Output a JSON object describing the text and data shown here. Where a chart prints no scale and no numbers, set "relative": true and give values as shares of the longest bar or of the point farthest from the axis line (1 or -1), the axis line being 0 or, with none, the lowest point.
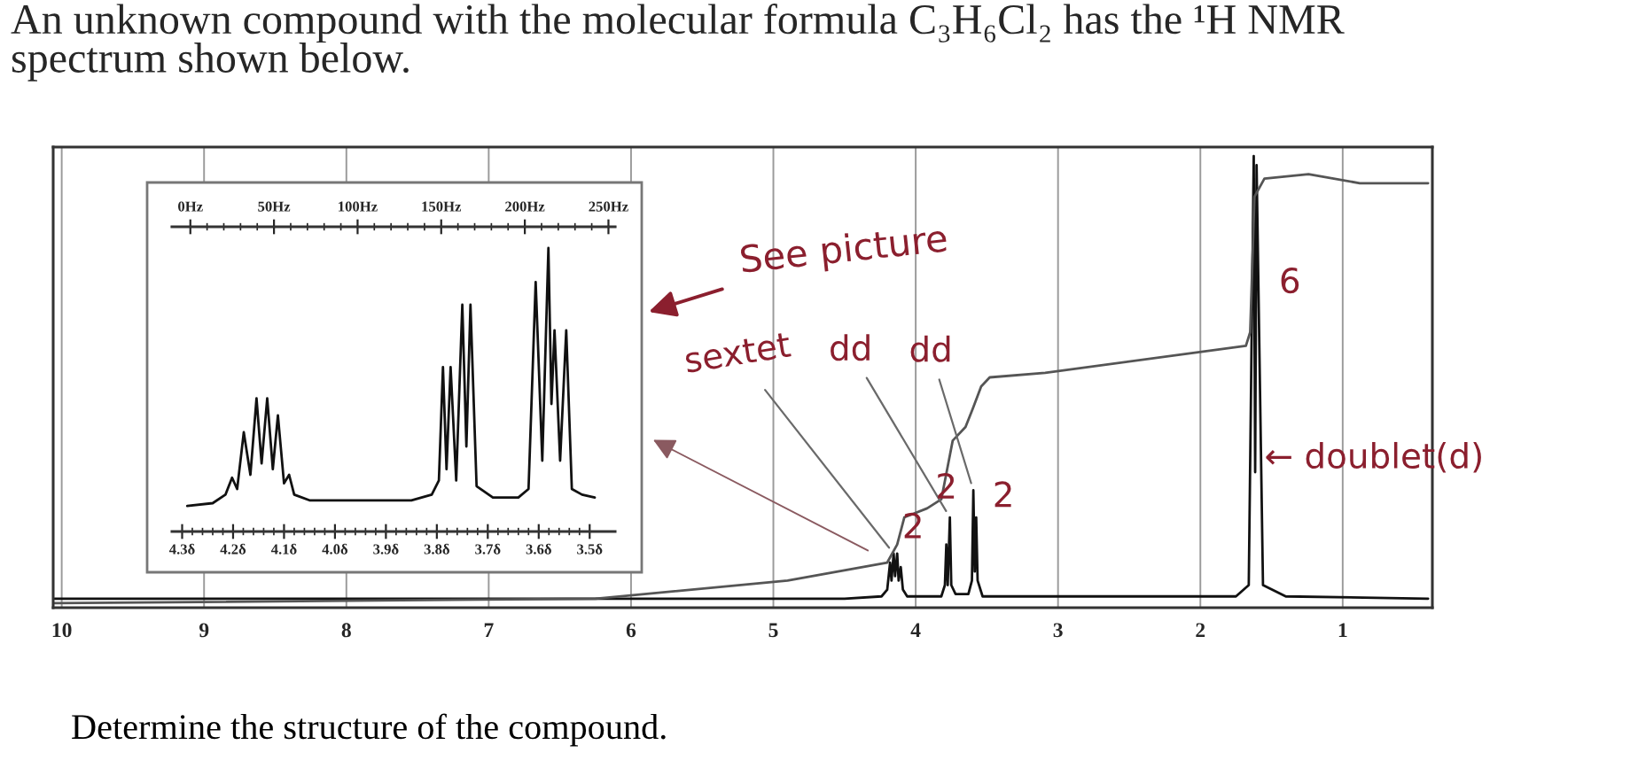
{
  "chart_data": [
    {
      "type": "line",
      "title": "An unknown compound with the molecular formula C₃H₆Cl₂ has the ¹H NMR\nspectrum shown below.",
      "relative": true,
      "xlim": [
        10.06,
        0.37
      ],
      "xticks": [
        10,
        9,
        8,
        7,
        6,
        5,
        4,
        3,
        2,
        1
      ],
      "grid": "x",
      "tick_labels": "x",
      "series": [
        {
          "color": "#111111",
          "x": [
            10.05,
            4.5,
            4.24,
            4.2,
            4.18,
            4.17,
            4.155,
            4.145,
            4.13,
            4.12,
            4.105,
            4.09,
            4.06,
            3.82,
            3.795,
            3.785,
            3.775,
            3.76,
            3.75,
            3.72,
            3.63,
            3.605,
            3.595,
            3.585,
            3.575,
            3.565,
            3.53,
            1.75,
            1.66,
            1.625,
            1.615,
            1.605,
            1.56,
            1.4,
            0.4
          ],
          "values": [
            0.02,
            0.02,
            0.025,
            0.04,
            0.1,
            0.06,
            0.12,
            0.07,
            0.12,
            0.06,
            0.09,
            0.04,
            0.025,
            0.025,
            0.05,
            0.14,
            0.05,
            0.2,
            0.05,
            0.03,
            0.03,
            0.06,
            0.26,
            0.08,
            0.2,
            0.06,
            0.025,
            0.025,
            0.05,
            1.0,
            0.3,
            0.98,
            0.05,
            0.025,
            0.02
          ]
        },
        {
          "color": "#555555",
          "x": [
            10.05,
            6.25,
            4.9,
            4.2,
            4.13,
            4.08,
            3.92,
            3.82,
            3.74,
            3.65,
            3.6,
            3.54,
            3.48,
            3.09,
            1.68,
            1.65,
            1.62,
            1.55,
            1.24,
            0.88,
            0.4
          ],
          "values": [
            0.01,
            0.02,
            0.06,
            0.1,
            0.14,
            0.2,
            0.22,
            0.24,
            0.37,
            0.4,
            0.44,
            0.49,
            0.51,
            0.52,
            0.58,
            0.61,
            0.91,
            0.95,
            0.96,
            0.94,
            0.94
          ]
        }
      ],
      "annotations": [
        "See picture",
        {
          "text": "sextet",
          "x": 4.155,
          "y": 0.12
        },
        {
          "text": "dd",
          "x": 3.76,
          "y": 0.2
        },
        {
          "text": "dd",
          "x": 3.595,
          "y": 0.26
        },
        {
          "text": "2",
          "x": 4.155,
          "y": 0.12
        },
        {
          "text": "2",
          "x": 3.76,
          "y": 0.2
        },
        {
          "text": "2",
          "x": 3.595,
          "y": 0.26
        },
        {
          "text": "6",
          "x": 1.62,
          "y": 0.91
        },
        {
          "text": "← doublet(d)",
          "x": 1.6,
          "y": 0.33
        },
        "Determine the structure of the compound."
      ]
    },
    {
      "type": "line",
      "relative": true,
      "xlim": [
        4.32,
        3.45
      ],
      "tick_labels": "x",
      "xticks": [
        {
          "value": 4.3,
          "label": "4.3δ"
        },
        {
          "value": 4.28,
          "label": null
        },
        {
          "value": 4.26,
          "label": null
        },
        {
          "value": 4.24,
          "label": null
        },
        {
          "value": 4.22,
          "label": null
        },
        {
          "value": 4.2,
          "label": "4.2δ"
        },
        {
          "value": 4.18,
          "label": null
        },
        {
          "value": 4.16,
          "label": null
        },
        {
          "value": 4.14,
          "label": null
        },
        {
          "value": 4.12,
          "label": null
        },
        {
          "value": 4.1,
          "label": "4.1δ"
        },
        {
          "value": 4.08,
          "label": null
        },
        {
          "value": 4.06,
          "label": null
        },
        {
          "value": 4.04,
          "label": null
        },
        {
          "value": 4.02,
          "label": null
        },
        {
          "value": 4.0,
          "label": "4.0δ"
        },
        {
          "value": 3.98,
          "label": null
        },
        {
          "value": 3.96,
          "label": null
        },
        {
          "value": 3.94,
          "label": null
        },
        {
          "value": 3.92,
          "label": null
        },
        {
          "value": 3.9,
          "label": "3.9δ"
        },
        {
          "value": 3.88,
          "label": null
        },
        {
          "value": 3.86,
          "label": null
        },
        {
          "value": 3.84,
          "label": null
        },
        {
          "value": 3.82,
          "label": null
        },
        {
          "value": 3.8,
          "label": "3.8δ"
        },
        {
          "value": 3.78,
          "label": null
        },
        {
          "value": 3.76,
          "label": null
        },
        {
          "value": 3.74,
          "label": null
        },
        {
          "value": 3.72,
          "label": null
        },
        {
          "value": 3.7,
          "label": "3.7δ"
        },
        {
          "value": 3.68,
          "label": null
        },
        {
          "value": 3.66,
          "label": null
        },
        {
          "value": 3.64,
          "label": null
        },
        {
          "value": 3.62,
          "label": null
        },
        {
          "value": 3.6,
          "label": "3.6δ"
        },
        {
          "value": 3.58,
          "label": null
        },
        {
          "value": 3.56,
          "label": null
        },
        {
          "value": 3.54,
          "label": null
        },
        {
          "value": 3.52,
          "label": null
        },
        {
          "value": 3.5,
          "label": "3.5δ"
        }
      ],
      "x2lim": [
        -11,
        254
      ],
      "x2ticks": [
        {
          "value": 0,
          "label": "0Hz"
        },
        {
          "value": 10,
          "label": null
        },
        {
          "value": 20,
          "label": null
        },
        {
          "value": 30,
          "label": null
        },
        {
          "value": 40,
          "label": null
        },
        {
          "value": 50,
          "label": "50Hz"
        },
        {
          "value": 60,
          "label": null
        },
        {
          "value": 70,
          "label": null
        },
        {
          "value": 80,
          "label": null
        },
        {
          "value": 90,
          "label": null
        },
        {
          "value": 100,
          "label": "100Hz"
        },
        {
          "value": 110,
          "label": null
        },
        {
          "value": 120,
          "label": null
        },
        {
          "value": 130,
          "label": null
        },
        {
          "value": 140,
          "label": null
        },
        {
          "value": 150,
          "label": "150Hz"
        },
        {
          "value": 160,
          "label": null
        },
        {
          "value": 170,
          "label": null
        },
        {
          "value": 180,
          "label": null
        },
        {
          "value": 190,
          "label": null
        },
        {
          "value": 200,
          "label": "200Hz"
        },
        {
          "value": 210,
          "label": null
        },
        {
          "value": 220,
          "label": null
        },
        {
          "value": 230,
          "label": null
        },
        {
          "value": 240,
          "label": null
        },
        {
          "value": 250,
          "label": "250Hz"
        }
      ],
      "series": [
        {
          "color": "#111111",
          "x": [
            4.29,
            4.24,
            4.215,
            4.202,
            4.192,
            4.179,
            4.166,
            4.154,
            4.144,
            4.133,
            4.122,
            4.112,
            4.1,
            4.09,
            4.08,
            4.05,
            3.85,
            3.81,
            3.796,
            3.788,
            3.781,
            3.773,
            3.762,
            3.75,
            3.742,
            3.734,
            3.722,
            3.69,
            3.64,
            3.62,
            3.606,
            3.593,
            3.581,
            3.575,
            3.569,
            3.558,
            3.546,
            3.535,
            3.515,
            3.49
          ],
          "values": [
            0.09,
            0.1,
            0.13,
            0.19,
            0.15,
            0.35,
            0.2,
            0.47,
            0.24,
            0.47,
            0.22,
            0.41,
            0.17,
            0.2,
            0.13,
            0.11,
            0.11,
            0.13,
            0.18,
            0.58,
            0.22,
            0.58,
            0.18,
            0.8,
            0.3,
            0.8,
            0.16,
            0.12,
            0.12,
            0.15,
            0.88,
            0.25,
            1.0,
            0.45,
            0.71,
            0.25,
            0.71,
            0.15,
            0.13,
            0.12
          ]
        }
      ]
    }
  ]
}
